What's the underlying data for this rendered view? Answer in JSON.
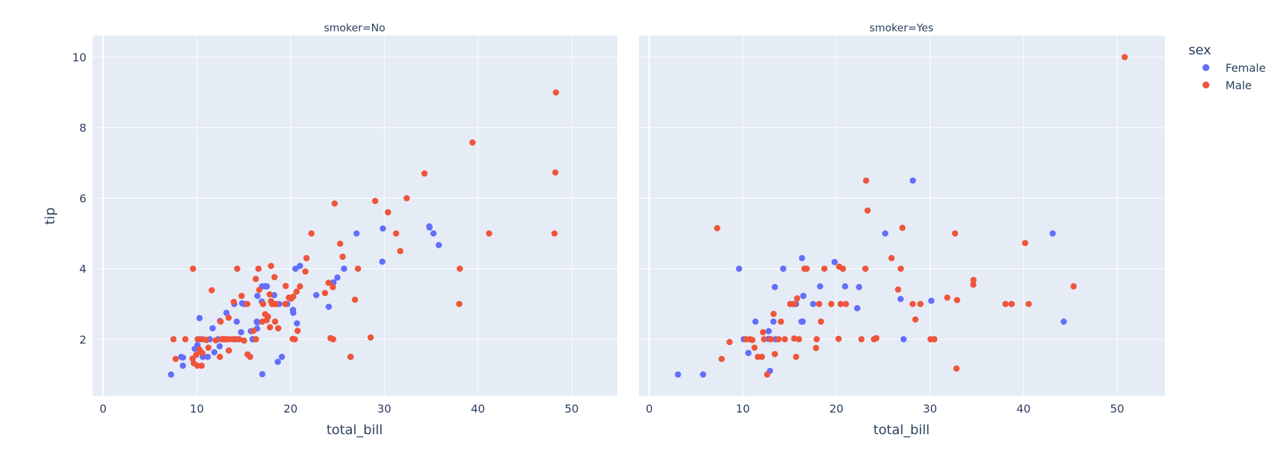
{
  "chart_data": {
    "type": "scatter",
    "title": "",
    "facet_column": "smoker",
    "panels": [
      {
        "title": "smoker=No",
        "xlabel": "total_bill",
        "ylabel": "tip"
      },
      {
        "title": "smoker=Yes",
        "xlabel": "total_bill",
        "ylabel": ""
      }
    ],
    "xlim": [
      -1.1,
      54.8
    ],
    "ylim": [
      0.4,
      10.6
    ],
    "x_ticks": [
      0,
      10,
      20,
      30,
      40,
      50
    ],
    "y_ticks": [
      2,
      4,
      6,
      8,
      10
    ],
    "grid": true,
    "legend": {
      "title": "sex",
      "position": "right-top",
      "entries": [
        {
          "name": "Female",
          "color": "#636efa"
        },
        {
          "name": "Male",
          "color": "#EF553B"
        }
      ]
    },
    "colors": {
      "Female": "#636efa",
      "Male": "#EF553B",
      "plot_bg": "#E5ECF6",
      "grid": "#ffffff",
      "text": "#2a3f5f"
    },
    "series": [
      {
        "name": "Female",
        "panel": "smoker=No",
        "points": [
          [
            16.99,
            1.01
          ],
          [
            24.59,
            3.61
          ],
          [
            35.26,
            5.0
          ],
          [
            14.83,
            3.02
          ],
          [
            10.33,
            1.67
          ],
          [
            16.97,
            3.5
          ],
          [
            20.29,
            2.75
          ],
          [
            15.77,
            2.23
          ],
          [
            19.65,
            3.0
          ],
          [
            15.06,
            3.0
          ],
          [
            20.69,
            2.45
          ],
          [
            16.93,
            3.07
          ],
          [
            10.29,
            2.6
          ],
          [
            34.81,
            5.2
          ],
          [
            26.41,
            1.5
          ],
          [
            16.45,
            2.47
          ],
          [
            3.07,
            1.0
          ],
          [
            17.07,
            3.0
          ],
          [
            26.86,
            3.14
          ],
          [
            25.28,
            5.0
          ],
          [
            14.73,
            2.2
          ],
          [
            10.07,
            1.83
          ],
          [
            34.83,
            5.17
          ],
          [
            5.75,
            1.0
          ],
          [
            16.32,
            4.3
          ],
          [
            22.75,
            3.25
          ],
          [
            40.17,
            4.73
          ],
          [
            27.28,
            4.0
          ],
          [
            12.03,
            1.5
          ],
          [
            21.01,
            3.0
          ],
          [
            12.46,
            1.5
          ],
          [
            11.35,
            2.5
          ],
          [
            15.38,
            3.0
          ],
          [
            44.3,
            2.5
          ],
          [
            22.42,
            3.48
          ],
          [
            20.92,
            4.08
          ],
          [
            15.36,
            1.64
          ],
          [
            20.49,
            4.06
          ],
          [
            25.21,
            4.29
          ],
          [
            18.24,
            3.76
          ],
          [
            14.31,
            4.0
          ],
          [
            14.0,
            3.0
          ],
          [
            7.25,
            1.0
          ],
          [
            38.07,
            4.0
          ],
          [
            23.95,
            2.55
          ],
          [
            25.71,
            4.0
          ],
          [
            17.31,
            3.5
          ],
          [
            29.93,
            5.07
          ],
          [
            10.65,
            1.5
          ],
          [
            12.43,
            1.8
          ],
          [
            24.08,
            2.92
          ],
          [
            11.69,
            2.31
          ],
          [
            13.42,
            1.68
          ],
          [
            14.26,
            2.5
          ],
          [
            15.95,
            2.0
          ],
          [
            12.48,
            2.52
          ],
          [
            29.8,
            4.2
          ],
          [
            8.52,
            1.48
          ],
          [
            14.52,
            2.0
          ],
          [
            11.38,
            2.0
          ],
          [
            22.82,
            2.18
          ],
          [
            19.08,
            1.5
          ],
          [
            20.27,
            2.83
          ],
          [
            11.17,
            1.5
          ],
          [
            12.26,
            2.0
          ],
          [
            18.26,
            3.25
          ],
          [
            8.51,
            1.25
          ],
          [
            10.33,
            2.0
          ],
          [
            14.15,
            2.0
          ],
          [
            13.16,
            2.75
          ],
          [
            17.47,
            3.5
          ],
          [
            27.05,
            5.0
          ],
          [
            16.43,
            2.3
          ],
          [
            8.35,
            1.5
          ],
          [
            18.64,
            1.36
          ],
          [
            11.87,
            1.63
          ],
          [
            9.78,
            1.73
          ],
          [
            7.51,
            2.0
          ],
          [
            35.83,
            4.67
          ],
          [
            18.78,
            3.0
          ],
          [
            13.0,
            2.0
          ],
          [
            16.4,
            2.5
          ],
          [
            20.53,
            4.0
          ],
          [
            16.47,
            3.23
          ],
          [
            26.59,
            3.41
          ],
          [
            38.73,
            3.0
          ],
          [
            24.27,
            2.03
          ],
          [
            12.76,
            2.23
          ],
          [
            30.06,
            2.0
          ],
          [
            25.89,
            5.16
          ],
          [
            48.33,
            9.0
          ],
          [
            13.27,
            2.5
          ],
          [
            28.17,
            6.5
          ],
          [
            12.9,
            1.1
          ],
          [
            28.15,
            3.0
          ],
          [
            11.59,
            1.5
          ],
          [
            7.74,
            1.44
          ],
          [
            30.14,
            3.09
          ],
          [
            12.16,
            2.2
          ],
          [
            13.42,
            3.48
          ],
          [
            8.58,
            1.92
          ],
          [
            15.98,
            3.0
          ],
          [
            13.42,
            1.58
          ],
          [
            16.27,
            2.5
          ],
          [
            10.09,
            2.0
          ],
          [
            20.45,
            3.0
          ],
          [
            13.28,
            2.72
          ],
          [
            22.12,
            2.88
          ],
          [
            24.01,
            2.0
          ],
          [
            15.69,
            3.0
          ],
          [
            11.61,
            3.39
          ],
          [
            10.77,
            1.47
          ],
          [
            15.53,
            3.0
          ],
          [
            10.07,
            1.25
          ],
          [
            12.6,
            1.0
          ],
          [
            32.83,
            1.17
          ],
          [
            35.83,
            4.67
          ],
          [
            29.03,
            5.92
          ],
          [
            27.18,
            2.0
          ],
          [
            22.67,
            2.0
          ],
          [
            17.82,
            1.75
          ],
          [
            18.78,
            3.0
          ]
        ]
      }
    ]
  },
  "legend": {
    "title": "sex",
    "female_label": "Female",
    "male_label": "Male"
  },
  "panels": {
    "left_title": "smoker=No",
    "right_title": "smoker=Yes",
    "xlabel": "total_bill",
    "ylabel": "tip"
  }
}
